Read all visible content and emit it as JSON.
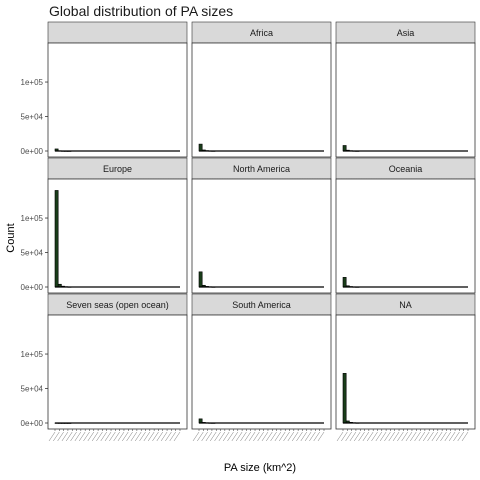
{
  "chart_data": {
    "type": "bar",
    "title": "Global distribution of PA sizes",
    "xlabel": "PA size (km^2)",
    "ylabel": "Count",
    "ylim": [
      0,
      145000
    ],
    "yticks": [
      0,
      50000,
      100000
    ],
    "ytick_labels": [
      "0e+00",
      "5e+04",
      "1e+05"
    ],
    "grid": false,
    "facets": [
      {
        "label": "",
        "values": [
          3000,
          400,
          150,
          80,
          40
        ]
      },
      {
        "label": "Africa",
        "values": [
          10000,
          1500,
          600,
          300,
          150
        ]
      },
      {
        "label": "Asia",
        "values": [
          8000,
          1200,
          500,
          250,
          120
        ]
      },
      {
        "label": "Europe",
        "values": [
          140000,
          4000,
          1200,
          500,
          250
        ]
      },
      {
        "label": "North America",
        "values": [
          22000,
          2500,
          900,
          400,
          200
        ]
      },
      {
        "label": "Oceania",
        "values": [
          14000,
          1800,
          700,
          300,
          150
        ]
      },
      {
        "label": "Seven seas (open ocean)",
        "values": [
          150,
          60,
          30,
          15,
          8
        ]
      },
      {
        "label": "South America",
        "values": [
          6000,
          900,
          400,
          200,
          100
        ]
      },
      {
        "label": "NA",
        "values": [
          72000,
          3000,
          1000,
          450,
          220
        ]
      }
    ]
  }
}
